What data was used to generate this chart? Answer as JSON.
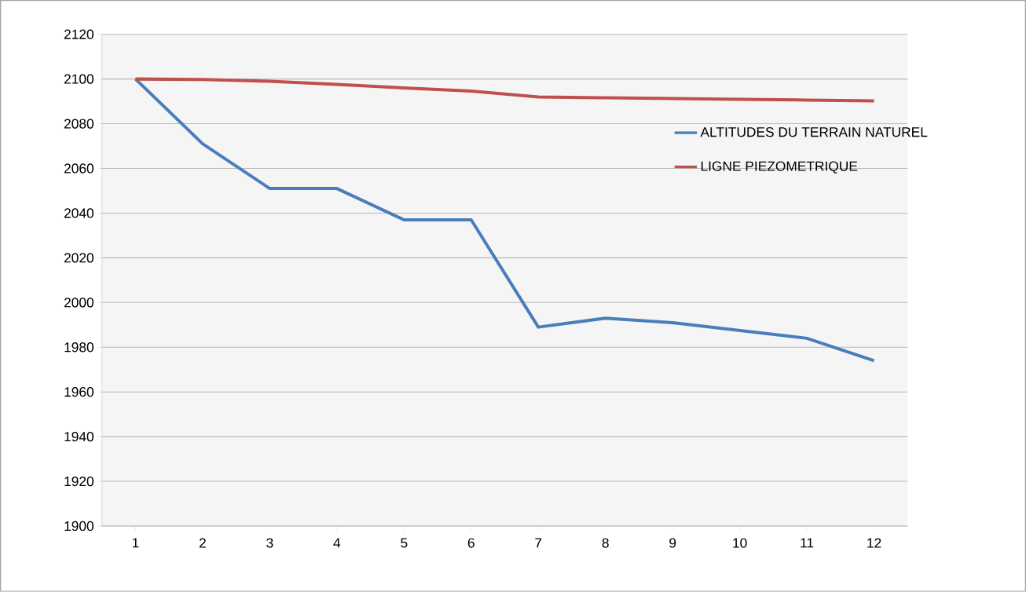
{
  "chart_data": {
    "type": "line",
    "categories": [
      "1",
      "2",
      "3",
      "4",
      "5",
      "6",
      "7",
      "8",
      "9",
      "10",
      "11",
      "12"
    ],
    "series": [
      {
        "name": "ALTITUDES DU TERRAIN NATUREL",
        "color": "#4a7ebb",
        "values": [
          2100,
          2071,
          2051,
          2051,
          2037,
          2037,
          1989,
          1993,
          1991,
          1987.5,
          1984,
          1974
        ]
      },
      {
        "name": "LIGNE PIEZOMETRIQUE",
        "color": "#c0504d",
        "values": [
          2100,
          2099.8,
          2099,
          2097.6,
          2096,
          2094.6,
          2092,
          2091.6,
          2091.3,
          2090.9,
          2090.6,
          2090.2
        ]
      }
    ],
    "ylim": [
      1900,
      2120
    ],
    "yticks": [
      1900,
      1920,
      1940,
      1960,
      1980,
      2000,
      2020,
      2040,
      2060,
      2080,
      2100,
      2120
    ],
    "grid": "y",
    "legend": "right",
    "marker": "none"
  }
}
